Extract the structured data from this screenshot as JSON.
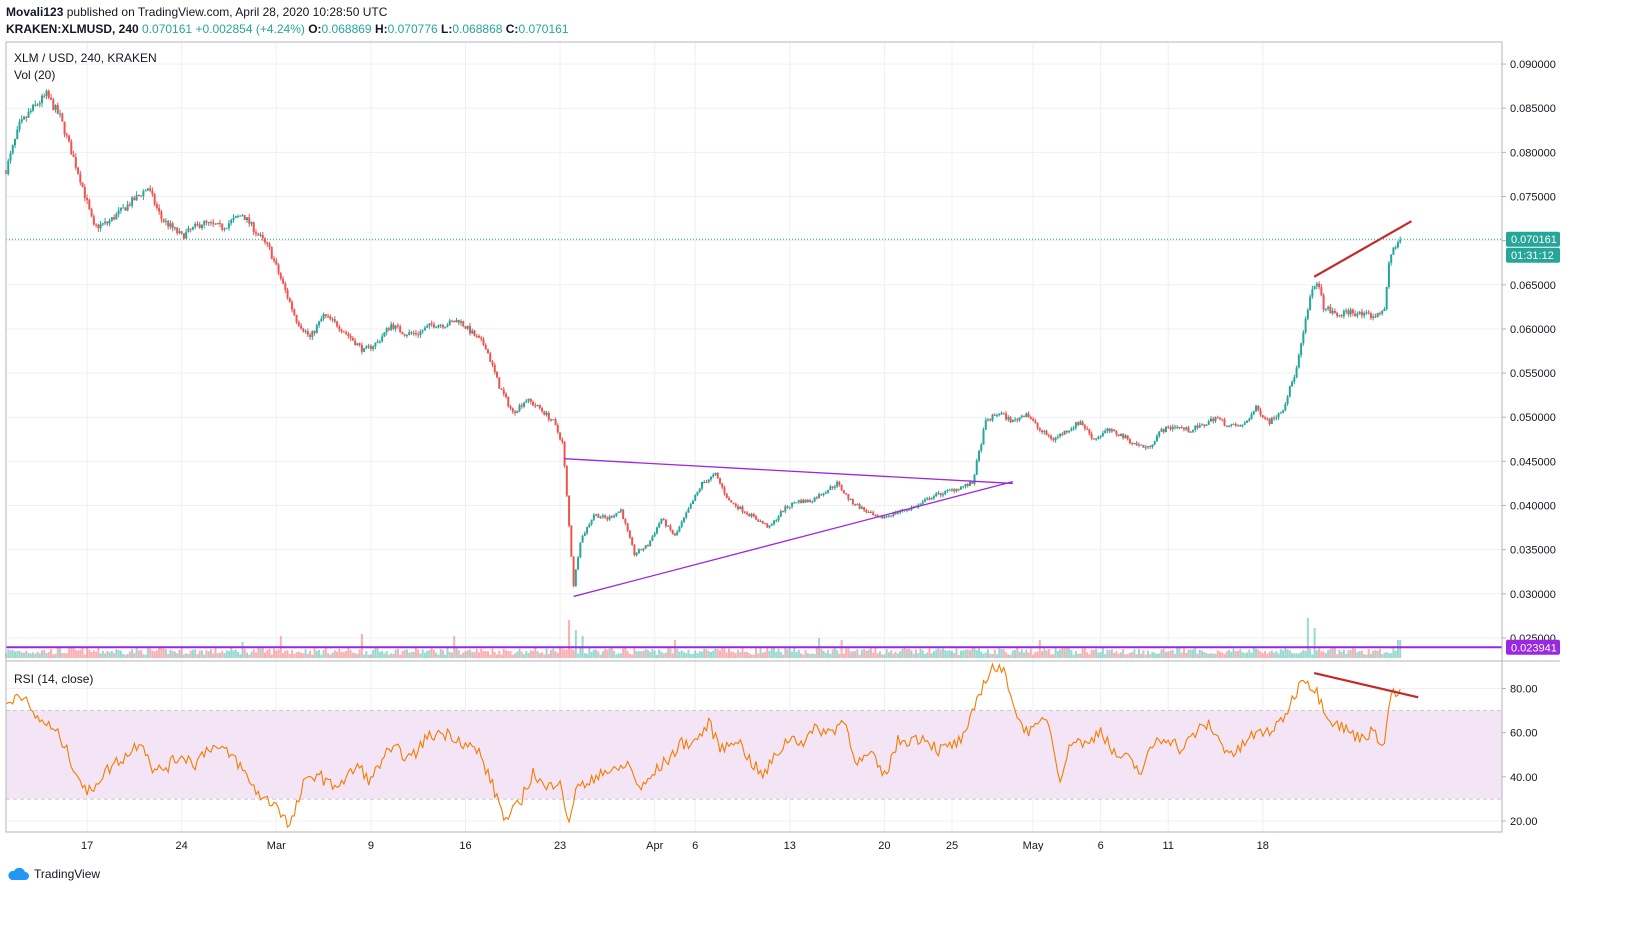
{
  "header": {
    "author": "Movali123",
    "published": "published on TradingView.com, April 28, 2020 10:28:50 UTC",
    "symbol": "KRAKEN:XLMUSD, 240",
    "last": "0.070161",
    "change": "+0.002854 (+4.24%)",
    "o_label": "O:",
    "o": "0.068869",
    "h_label": "H:",
    "h": "0.070776",
    "l_label": "L:",
    "l": "0.068868",
    "c_label": "C:",
    "c": "0.070161"
  },
  "legend": {
    "pair": "XLM / USD, 240, KRAKEN",
    "volume": "Vol (20)",
    "rsi": "RSI (14, close)"
  },
  "price_badges": {
    "last_price": "0.070161",
    "countdown": "01:31:12",
    "level": "0.023941"
  },
  "logo": {
    "text": "TradingView"
  },
  "colors": {
    "up": "#26a69a",
    "down": "#ef5350",
    "triangle": "#9c27e0",
    "support": "#9c27e0",
    "divergence": "#c62828",
    "rsi_line": "#f57c00",
    "rsi_band": "#f3e5f5",
    "last_price_badge": "#26a69a",
    "level_badge": "#9c27e0"
  },
  "chart_data": [
    {
      "type": "candlestick",
      "timeframe": "240",
      "ylim": [
        0.0225,
        0.0925
      ],
      "yticks": [
        "0.090000",
        "0.085000",
        "0.080000",
        "0.075000",
        "0.070000",
        "0.065000",
        "0.060000",
        "0.055000",
        "0.050000",
        "0.045000",
        "0.040000",
        "0.035000",
        "0.030000",
        "0.025000"
      ],
      "ytick_values": [
        0.09,
        0.085,
        0.08,
        0.075,
        0.07,
        0.065,
        0.06,
        0.055,
        0.05,
        0.045,
        0.04,
        0.035,
        0.03,
        0.025
      ],
      "xticks": [
        "17",
        "24",
        "Mar",
        "9",
        "16",
        "23",
        "Apr",
        "6",
        "13",
        "20",
        "25",
        "May",
        "6",
        "11",
        "18"
      ],
      "last_price": 0.070161,
      "horizontal_level": 0.023941,
      "path_points": [
        {
          "d": 0,
          "p": 0.078
        },
        {
          "d": 1,
          "p": 0.083
        },
        {
          "d": 2,
          "p": 0.085
        },
        {
          "d": 3,
          "p": 0.0865
        },
        {
          "d": 4,
          "p": 0.084
        },
        {
          "d": 5.5,
          "p": 0.077
        },
        {
          "d": 6.5,
          "p": 0.0715
        },
        {
          "d": 7.5,
          "p": 0.072
        },
        {
          "d": 9,
          "p": 0.074
        },
        {
          "d": 10.5,
          "p": 0.076
        },
        {
          "d": 11.5,
          "p": 0.0725
        },
        {
          "d": 13,
          "p": 0.0705
        },
        {
          "d": 14.5,
          "p": 0.072
        },
        {
          "d": 16,
          "p": 0.0715
        },
        {
          "d": 17.5,
          "p": 0.073
        },
        {
          "d": 18.5,
          "p": 0.071
        },
        {
          "d": 19.5,
          "p": 0.069
        },
        {
          "d": 20.5,
          "p": 0.065
        },
        {
          "d": 21.5,
          "p": 0.061
        },
        {
          "d": 22.5,
          "p": 0.059
        },
        {
          "d": 23.5,
          "p": 0.0615
        },
        {
          "d": 24.5,
          "p": 0.0605
        },
        {
          "d": 25.5,
          "p": 0.059
        },
        {
          "d": 26.5,
          "p": 0.0575
        },
        {
          "d": 27.5,
          "p": 0.0585
        },
        {
          "d": 28.5,
          "p": 0.0605
        },
        {
          "d": 29.5,
          "p": 0.0595
        },
        {
          "d": 30.5,
          "p": 0.0595
        },
        {
          "d": 31.5,
          "p": 0.0605
        },
        {
          "d": 32.5,
          "p": 0.0605
        },
        {
          "d": 33.5,
          "p": 0.061
        },
        {
          "d": 34.5,
          "p": 0.0595
        },
        {
          "d": 35.5,
          "p": 0.058
        },
        {
          "d": 36.5,
          "p": 0.0535
        },
        {
          "d": 37.5,
          "p": 0.0505
        },
        {
          "d": 38.5,
          "p": 0.052
        },
        {
          "d": 39.5,
          "p": 0.051
        },
        {
          "d": 40.5,
          "p": 0.0495
        },
        {
          "d": 41.2,
          "p": 0.047
        },
        {
          "d": 41.6,
          "p": 0.039
        },
        {
          "d": 42.0,
          "p": 0.031
        },
        {
          "d": 42.5,
          "p": 0.036
        },
        {
          "d": 43.5,
          "p": 0.039
        },
        {
          "d": 44.5,
          "p": 0.0385
        },
        {
          "d": 45.5,
          "p": 0.0395
        },
        {
          "d": 46.5,
          "p": 0.0345
        },
        {
          "d": 47.5,
          "p": 0.0355
        },
        {
          "d": 48.5,
          "p": 0.0385
        },
        {
          "d": 49.5,
          "p": 0.0365
        },
        {
          "d": 50.5,
          "p": 0.0395
        },
        {
          "d": 51.5,
          "p": 0.0425
        },
        {
          "d": 52.5,
          "p": 0.0435
        },
        {
          "d": 53.5,
          "p": 0.0405
        },
        {
          "d": 54.5,
          "p": 0.0395
        },
        {
          "d": 55.5,
          "p": 0.0385
        },
        {
          "d": 56.5,
          "p": 0.0375
        },
        {
          "d": 57.5,
          "p": 0.0395
        },
        {
          "d": 58.5,
          "p": 0.0405
        },
        {
          "d": 59.5,
          "p": 0.0405
        },
        {
          "d": 60.5,
          "p": 0.0415
        },
        {
          "d": 61.5,
          "p": 0.0425
        },
        {
          "d": 62.5,
          "p": 0.0405
        },
        {
          "d": 63.5,
          "p": 0.0395
        },
        {
          "d": 64.5,
          "p": 0.0385
        },
        {
          "d": 65.5,
          "p": 0.039
        },
        {
          "d": 66.5,
          "p": 0.0395
        },
        {
          "d": 67.5,
          "p": 0.04
        },
        {
          "d": 68.5,
          "p": 0.041
        },
        {
          "d": 69.5,
          "p": 0.0415
        },
        {
          "d": 70.5,
          "p": 0.042
        },
        {
          "d": 71.5,
          "p": 0.0425
        },
        {
          "d": 72.5,
          "p": 0.0495
        },
        {
          "d": 73.5,
          "p": 0.0505
        },
        {
          "d": 74.5,
          "p": 0.0495
        },
        {
          "d": 75.5,
          "p": 0.0505
        },
        {
          "d": 76.5,
          "p": 0.0485
        },
        {
          "d": 77.5,
          "p": 0.0475
        },
        {
          "d": 78.5,
          "p": 0.0485
        },
        {
          "d": 79.5,
          "p": 0.0495
        },
        {
          "d": 80.5,
          "p": 0.0475
        },
        {
          "d": 81.5,
          "p": 0.0485
        },
        {
          "d": 82.5,
          "p": 0.048
        },
        {
          "d": 83.5,
          "p": 0.047
        },
        {
          "d": 84.5,
          "p": 0.0465
        },
        {
          "d": 85.5,
          "p": 0.0485
        },
        {
          "d": 86.5,
          "p": 0.049
        },
        {
          "d": 87.5,
          "p": 0.0485
        },
        {
          "d": 88.5,
          "p": 0.049
        },
        {
          "d": 89.5,
          "p": 0.05
        },
        {
          "d": 90.5,
          "p": 0.049
        },
        {
          "d": 91.5,
          "p": 0.049
        },
        {
          "d": 92.5,
          "p": 0.051
        },
        {
          "d": 93.5,
          "p": 0.0495
        },
        {
          "d": 94.5,
          "p": 0.051
        },
        {
          "d": 95.5,
          "p": 0.0555
        },
        {
          "d": 96.5,
          "p": 0.0635
        },
        {
          "d": 97.0,
          "p": 0.0655
        },
        {
          "d": 97.5,
          "p": 0.0625
        },
        {
          "d": 98.5,
          "p": 0.0615
        },
        {
          "d": 99.5,
          "p": 0.062
        },
        {
          "d": 100.5,
          "p": 0.0615
        },
        {
          "d": 101.5,
          "p": 0.0615
        },
        {
          "d": 102.0,
          "p": 0.0625
        },
        {
          "d": 102.4,
          "p": 0.068
        },
        {
          "d": 102.8,
          "p": 0.0695
        },
        {
          "d": 103.2,
          "p": 0.070161
        }
      ],
      "trendlines": [
        {
          "name": "triangle-upper",
          "from": [
            41.3,
            0.0453
          ],
          "to": [
            74.5,
            0.0425
          ]
        },
        {
          "name": "triangle-lower",
          "from": [
            42.0,
            0.0297
          ],
          "to": [
            74.5,
            0.0427
          ]
        },
        {
          "name": "divergence-price",
          "from": [
            96.8,
            0.0659
          ],
          "to": [
            104.0,
            0.0722
          ]
        }
      ]
    },
    {
      "type": "bar",
      "name": "Vol (20)",
      "ylim": [
        0,
        1
      ],
      "spikes": [
        {
          "d": 41.7,
          "v": 0.95
        },
        {
          "d": 42.1,
          "v": 0.7
        },
        {
          "d": 42.6,
          "v": 0.55
        },
        {
          "d": 26.3,
          "v": 0.6
        },
        {
          "d": 33.2,
          "v": 0.55
        },
        {
          "d": 49.5,
          "v": 0.45
        },
        {
          "d": 60.2,
          "v": 0.5
        },
        {
          "d": 61.8,
          "v": 0.45
        },
        {
          "d": 76.5,
          "v": 0.45
        },
        {
          "d": 96.4,
          "v": 1.0
        },
        {
          "d": 96.9,
          "v": 0.75
        },
        {
          "d": 103.1,
          "v": 0.45
        },
        {
          "d": 20.3,
          "v": 0.55
        },
        {
          "d": 17.5,
          "v": 0.4
        }
      ]
    },
    {
      "type": "line",
      "name": "RSI (14, close)",
      "ylim": [
        15,
        92
      ],
      "yticks": [
        "80.00",
        "60.00",
        "40.00",
        "20.00"
      ],
      "ytick_values": [
        80,
        60,
        40,
        20
      ],
      "band": [
        30,
        70
      ],
      "key_points": [
        {
          "d": 0,
          "v": 72
        },
        {
          "d": 1,
          "v": 79
        },
        {
          "d": 2,
          "v": 68
        },
        {
          "d": 3,
          "v": 64
        },
        {
          "d": 4,
          "v": 58
        },
        {
          "d": 5,
          "v": 45
        },
        {
          "d": 6,
          "v": 32
        },
        {
          "d": 7,
          "v": 40
        },
        {
          "d": 8,
          "v": 46
        },
        {
          "d": 9,
          "v": 50
        },
        {
          "d": 10,
          "v": 57
        },
        {
          "d": 11,
          "v": 42
        },
        {
          "d": 12,
          "v": 45
        },
        {
          "d": 13,
          "v": 50
        },
        {
          "d": 14,
          "v": 46
        },
        {
          "d": 15,
          "v": 54
        },
        {
          "d": 16,
          "v": 52
        },
        {
          "d": 17,
          "v": 48
        },
        {
          "d": 18,
          "v": 38
        },
        {
          "d": 19,
          "v": 30
        },
        {
          "d": 20,
          "v": 28
        },
        {
          "d": 21,
          "v": 17
        },
        {
          "d": 22,
          "v": 36
        },
        {
          "d": 23,
          "v": 42
        },
        {
          "d": 24,
          "v": 36
        },
        {
          "d": 25,
          "v": 38
        },
        {
          "d": 26,
          "v": 45
        },
        {
          "d": 27,
          "v": 38
        },
        {
          "d": 28,
          "v": 50
        },
        {
          "d": 29,
          "v": 52
        },
        {
          "d": 30,
          "v": 48
        },
        {
          "d": 31,
          "v": 57
        },
        {
          "d": 32,
          "v": 60
        },
        {
          "d": 33,
          "v": 59
        },
        {
          "d": 34,
          "v": 55
        },
        {
          "d": 35,
          "v": 51
        },
        {
          "d": 36,
          "v": 36
        },
        {
          "d": 37,
          "v": 20
        },
        {
          "d": 38,
          "v": 28
        },
        {
          "d": 39,
          "v": 42
        },
        {
          "d": 40,
          "v": 34
        },
        {
          "d": 41,
          "v": 40
        },
        {
          "d": 41.7,
          "v": 16
        },
        {
          "d": 42.2,
          "v": 38
        },
        {
          "d": 43,
          "v": 35
        },
        {
          "d": 44,
          "v": 43
        },
        {
          "d": 45,
          "v": 42
        },
        {
          "d": 46,
          "v": 46
        },
        {
          "d": 47,
          "v": 34
        },
        {
          "d": 48,
          "v": 42
        },
        {
          "d": 49,
          "v": 48
        },
        {
          "d": 50,
          "v": 55
        },
        {
          "d": 51,
          "v": 56
        },
        {
          "d": 52,
          "v": 64
        },
        {
          "d": 53,
          "v": 52
        },
        {
          "d": 54,
          "v": 58
        },
        {
          "d": 55,
          "v": 48
        },
        {
          "d": 56,
          "v": 40
        },
        {
          "d": 57,
          "v": 50
        },
        {
          "d": 58,
          "v": 58
        },
        {
          "d": 59,
          "v": 56
        },
        {
          "d": 60,
          "v": 62
        },
        {
          "d": 61,
          "v": 60
        },
        {
          "d": 62,
          "v": 66
        },
        {
          "d": 63,
          "v": 46
        },
        {
          "d": 64,
          "v": 50
        },
        {
          "d": 65,
          "v": 40
        },
        {
          "d": 66,
          "v": 56
        },
        {
          "d": 67,
          "v": 57
        },
        {
          "d": 68,
          "v": 58
        },
        {
          "d": 69,
          "v": 52
        },
        {
          "d": 70,
          "v": 54
        },
        {
          "d": 71,
          "v": 58
        },
        {
          "d": 72,
          "v": 78
        },
        {
          "d": 73,
          "v": 90
        },
        {
          "d": 74,
          "v": 86
        },
        {
          "d": 75,
          "v": 64
        },
        {
          "d": 76,
          "v": 60
        },
        {
          "d": 77,
          "v": 68
        },
        {
          "d": 78,
          "v": 40
        },
        {
          "d": 79,
          "v": 58
        },
        {
          "d": 80,
          "v": 54
        },
        {
          "d": 81,
          "v": 62
        },
        {
          "d": 82,
          "v": 50
        },
        {
          "d": 83,
          "v": 48
        },
        {
          "d": 84,
          "v": 42
        },
        {
          "d": 85,
          "v": 56
        },
        {
          "d": 86,
          "v": 58
        },
        {
          "d": 87,
          "v": 52
        },
        {
          "d": 88,
          "v": 60
        },
        {
          "d": 89,
          "v": 64
        },
        {
          "d": 90,
          "v": 54
        },
        {
          "d": 91,
          "v": 50
        },
        {
          "d": 92,
          "v": 58
        },
        {
          "d": 93,
          "v": 60
        },
        {
          "d": 94,
          "v": 62
        },
        {
          "d": 95,
          "v": 72
        },
        {
          "d": 96,
          "v": 86
        },
        {
          "d": 97,
          "v": 78
        },
        {
          "d": 98,
          "v": 66
        },
        {
          "d": 99,
          "v": 62
        },
        {
          "d": 100,
          "v": 58
        },
        {
          "d": 101,
          "v": 60
        },
        {
          "d": 102,
          "v": 56
        },
        {
          "d": 102.5,
          "v": 78
        },
        {
          "d": 103.2,
          "v": 77
        }
      ],
      "trendlines": [
        {
          "name": "divergence-rsi",
          "from": [
            96.8,
            87
          ],
          "to": [
            104.5,
            76
          ]
        }
      ]
    }
  ],
  "time_axis": {
    "labels": [
      "17",
      "24",
      "Mar",
      "9",
      "16",
      "23",
      "Apr",
      "6",
      "13",
      "20",
      "25",
      "May",
      "6",
      "11",
      "18"
    ],
    "days": [
      6,
      13,
      20,
      27,
      34,
      41,
      48,
      51,
      58,
      65,
      70,
      76,
      81,
      86,
      93
    ]
  }
}
